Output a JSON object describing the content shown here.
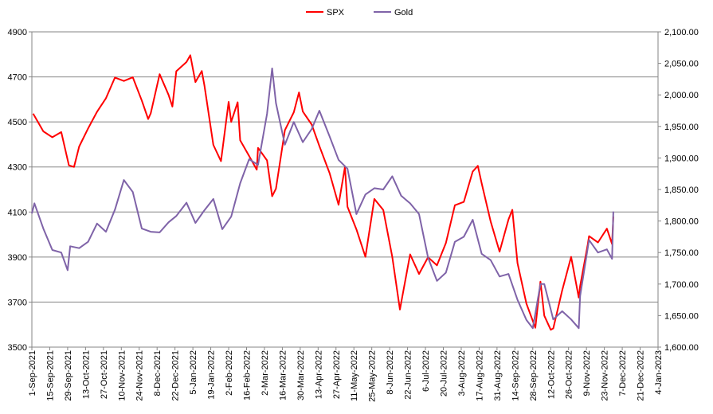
{
  "chart_data": {
    "type": "line",
    "title": "",
    "legend": {
      "placement": "top-center",
      "entries": [
        "SPX",
        "Gold"
      ]
    },
    "x_ticks": [
      "1-Sep-2021",
      "15-Sep-2021",
      "29-Sep-2021",
      "13-Oct-2021",
      "27-Oct-2021",
      "10-Nov-2021",
      "24-Nov-2021",
      "8-Dec-2021",
      "22-Dec-2021",
      "5-Jan-2022",
      "19-Jan-2022",
      "2-Feb-2022",
      "16-Feb-2022",
      "2-Mar-2022",
      "16-Mar-2022",
      "30-Mar-2022",
      "13-Apr-2022",
      "27-Apr-2022",
      "11-May-2022",
      "25-May-2022",
      "8-Jun-2022",
      "22-Jun-2022",
      "6-Jul-2022",
      "20-Jul-2022",
      "3-Aug-2022",
      "17-Aug-2022",
      "31-Aug-2022",
      "14-Sep-2022",
      "28-Sep-2022",
      "12-Oct-2022",
      "26-Oct-2022",
      "9-Nov-2022",
      "23-Nov-2022",
      "7-Dec-2022",
      "21-Dec-2022",
      "4-Jan-2023"
    ],
    "xlim": [
      "2021-09-01",
      "2023-01-04"
    ],
    "y_left": {
      "min": 3500,
      "max": 4900,
      "step": 200,
      "ticks": [
        "3500",
        "3700",
        "3900",
        "4100",
        "4300",
        "4500",
        "4700",
        "4900"
      ]
    },
    "y_right": {
      "min": 1600,
      "max": 2100,
      "step": 50,
      "ticks": [
        "1,600.00",
        "1,650.00",
        "1,700.00",
        "1,750.00",
        "1,800.00",
        "1,850.00",
        "1,900.00",
        "1,950.00",
        "2,000.00",
        "2,050.00",
        "2,100.00"
      ]
    },
    "grid": true,
    "series": [
      {
        "name": "SPX",
        "axis": "left",
        "color": "#FF0000",
        "dates": [
          "2021-09-02",
          "2021-09-10",
          "2021-09-17",
          "2021-09-24",
          "2021-09-30",
          "2021-10-04",
          "2021-10-08",
          "2021-10-15",
          "2021-10-22",
          "2021-10-29",
          "2021-11-05",
          "2021-11-12",
          "2021-11-19",
          "2021-11-26",
          "2021-12-01",
          "2021-12-03",
          "2021-12-10",
          "2021-12-17",
          "2021-12-20",
          "2021-12-23",
          "2021-12-31",
          "2022-01-03",
          "2022-01-07",
          "2022-01-12",
          "2022-01-14",
          "2022-01-21",
          "2022-01-27",
          "2022-02-02",
          "2022-02-04",
          "2022-02-09",
          "2022-02-11",
          "2022-02-18",
          "2022-02-24",
          "2022-02-25",
          "2022-03-04",
          "2022-03-08",
          "2022-03-11",
          "2022-03-18",
          "2022-03-25",
          "2022-03-29",
          "2022-04-01",
          "2022-04-08",
          "2022-04-14",
          "2022-04-22",
          "2022-04-29",
          "2022-05-04",
          "2022-05-06",
          "2022-05-13",
          "2022-05-20",
          "2022-05-27",
          "2022-06-03",
          "2022-06-10",
          "2022-06-16",
          "2022-06-24",
          "2022-07-01",
          "2022-07-08",
          "2022-07-15",
          "2022-07-22",
          "2022-07-29",
          "2022-08-05",
          "2022-08-12",
          "2022-08-16",
          "2022-08-19",
          "2022-08-26",
          "2022-09-02",
          "2022-09-09",
          "2022-09-12",
          "2022-09-16",
          "2022-09-23",
          "2022-09-30",
          "2022-10-04",
          "2022-10-07",
          "2022-10-12",
          "2022-10-14",
          "2022-10-21",
          "2022-10-28",
          "2022-11-03",
          "2022-11-04",
          "2022-11-10",
          "2022-11-11",
          "2022-11-18",
          "2022-11-25",
          "2022-11-29",
          "2022-11-30"
        ],
        "values": [
          4537,
          4458,
          4432,
          4455,
          4307,
          4300,
          4391,
          4471,
          4545,
          4605,
          4697,
          4682,
          4698,
          4595,
          4513,
          4538,
          4712,
          4620,
          4568,
          4725,
          4766,
          4796,
          4677,
          4726,
          4662,
          4398,
          4326,
          4589,
          4500,
          4587,
          4418,
          4349,
          4288,
          4385,
          4329,
          4170,
          4204,
          4463,
          4543,
          4631,
          4546,
          4488,
          4393,
          4272,
          4132,
          4300,
          4123,
          4023,
          3901,
          4158,
          4109,
          3901,
          3667,
          3912,
          3825,
          3899,
          3863,
          3962,
          4130,
          4145,
          4280,
          4305,
          4228,
          4058,
          3924,
          4067,
          4110,
          3873,
          3693,
          3586,
          3791,
          3640,
          3577,
          3583,
          3752,
          3901,
          3720,
          3771,
          3956,
          3993,
          3965,
          4026,
          3958,
          4080
        ]
      },
      {
        "name": "Gold",
        "axis": "right",
        "color": "#7F63A8",
        "dates": [
          "2021-09-01",
          "2021-09-03",
          "2021-09-10",
          "2021-09-17",
          "2021-09-24",
          "2021-09-29",
          "2021-10-01",
          "2021-10-08",
          "2021-10-15",
          "2021-10-22",
          "2021-10-29",
          "2021-11-05",
          "2021-11-12",
          "2021-11-19",
          "2021-11-26",
          "2021-12-03",
          "2021-12-10",
          "2021-12-17",
          "2021-12-23",
          "2021-12-31",
          "2022-01-07",
          "2022-01-14",
          "2022-01-21",
          "2022-01-28",
          "2022-02-04",
          "2022-02-11",
          "2022-02-18",
          "2022-02-25",
          "2022-03-04",
          "2022-03-08",
          "2022-03-11",
          "2022-03-18",
          "2022-03-25",
          "2022-04-01",
          "2022-04-08",
          "2022-04-14",
          "2022-04-22",
          "2022-04-29",
          "2022-05-06",
          "2022-05-13",
          "2022-05-20",
          "2022-05-27",
          "2022-06-03",
          "2022-06-10",
          "2022-06-17",
          "2022-06-24",
          "2022-07-01",
          "2022-07-08",
          "2022-07-15",
          "2022-07-22",
          "2022-07-29",
          "2022-08-05",
          "2022-08-12",
          "2022-08-19",
          "2022-08-26",
          "2022-09-02",
          "2022-09-09",
          "2022-09-16",
          "2022-09-23",
          "2022-09-28",
          "2022-10-04",
          "2022-10-07",
          "2022-10-14",
          "2022-10-21",
          "2022-10-28",
          "2022-11-03",
          "2022-11-04",
          "2022-11-11",
          "2022-11-18",
          "2022-11-25",
          "2022-11-29",
          "2022-11-30"
        ],
        "values": [
          1812,
          1828,
          1788,
          1754,
          1750,
          1722,
          1760,
          1757,
          1767,
          1796,
          1783,
          1818,
          1865,
          1846,
          1788,
          1783,
          1782,
          1798,
          1808,
          1829,
          1797,
          1817,
          1835,
          1787,
          1807,
          1860,
          1898,
          1889,
          1970,
          2042,
          1987,
          1921,
          1957,
          1925,
          1946,
          1975,
          1934,
          1897,
          1883,
          1811,
          1842,
          1852,
          1850,
          1871,
          1840,
          1828,
          1811,
          1742,
          1705,
          1718,
          1767,
          1775,
          1802,
          1748,
          1738,
          1712,
          1716,
          1675,
          1643,
          1630,
          1700,
          1700,
          1644,
          1657,
          1644,
          1630,
          1681,
          1770,
          1750,
          1755,
          1740,
          1815
        ]
      }
    ]
  }
}
